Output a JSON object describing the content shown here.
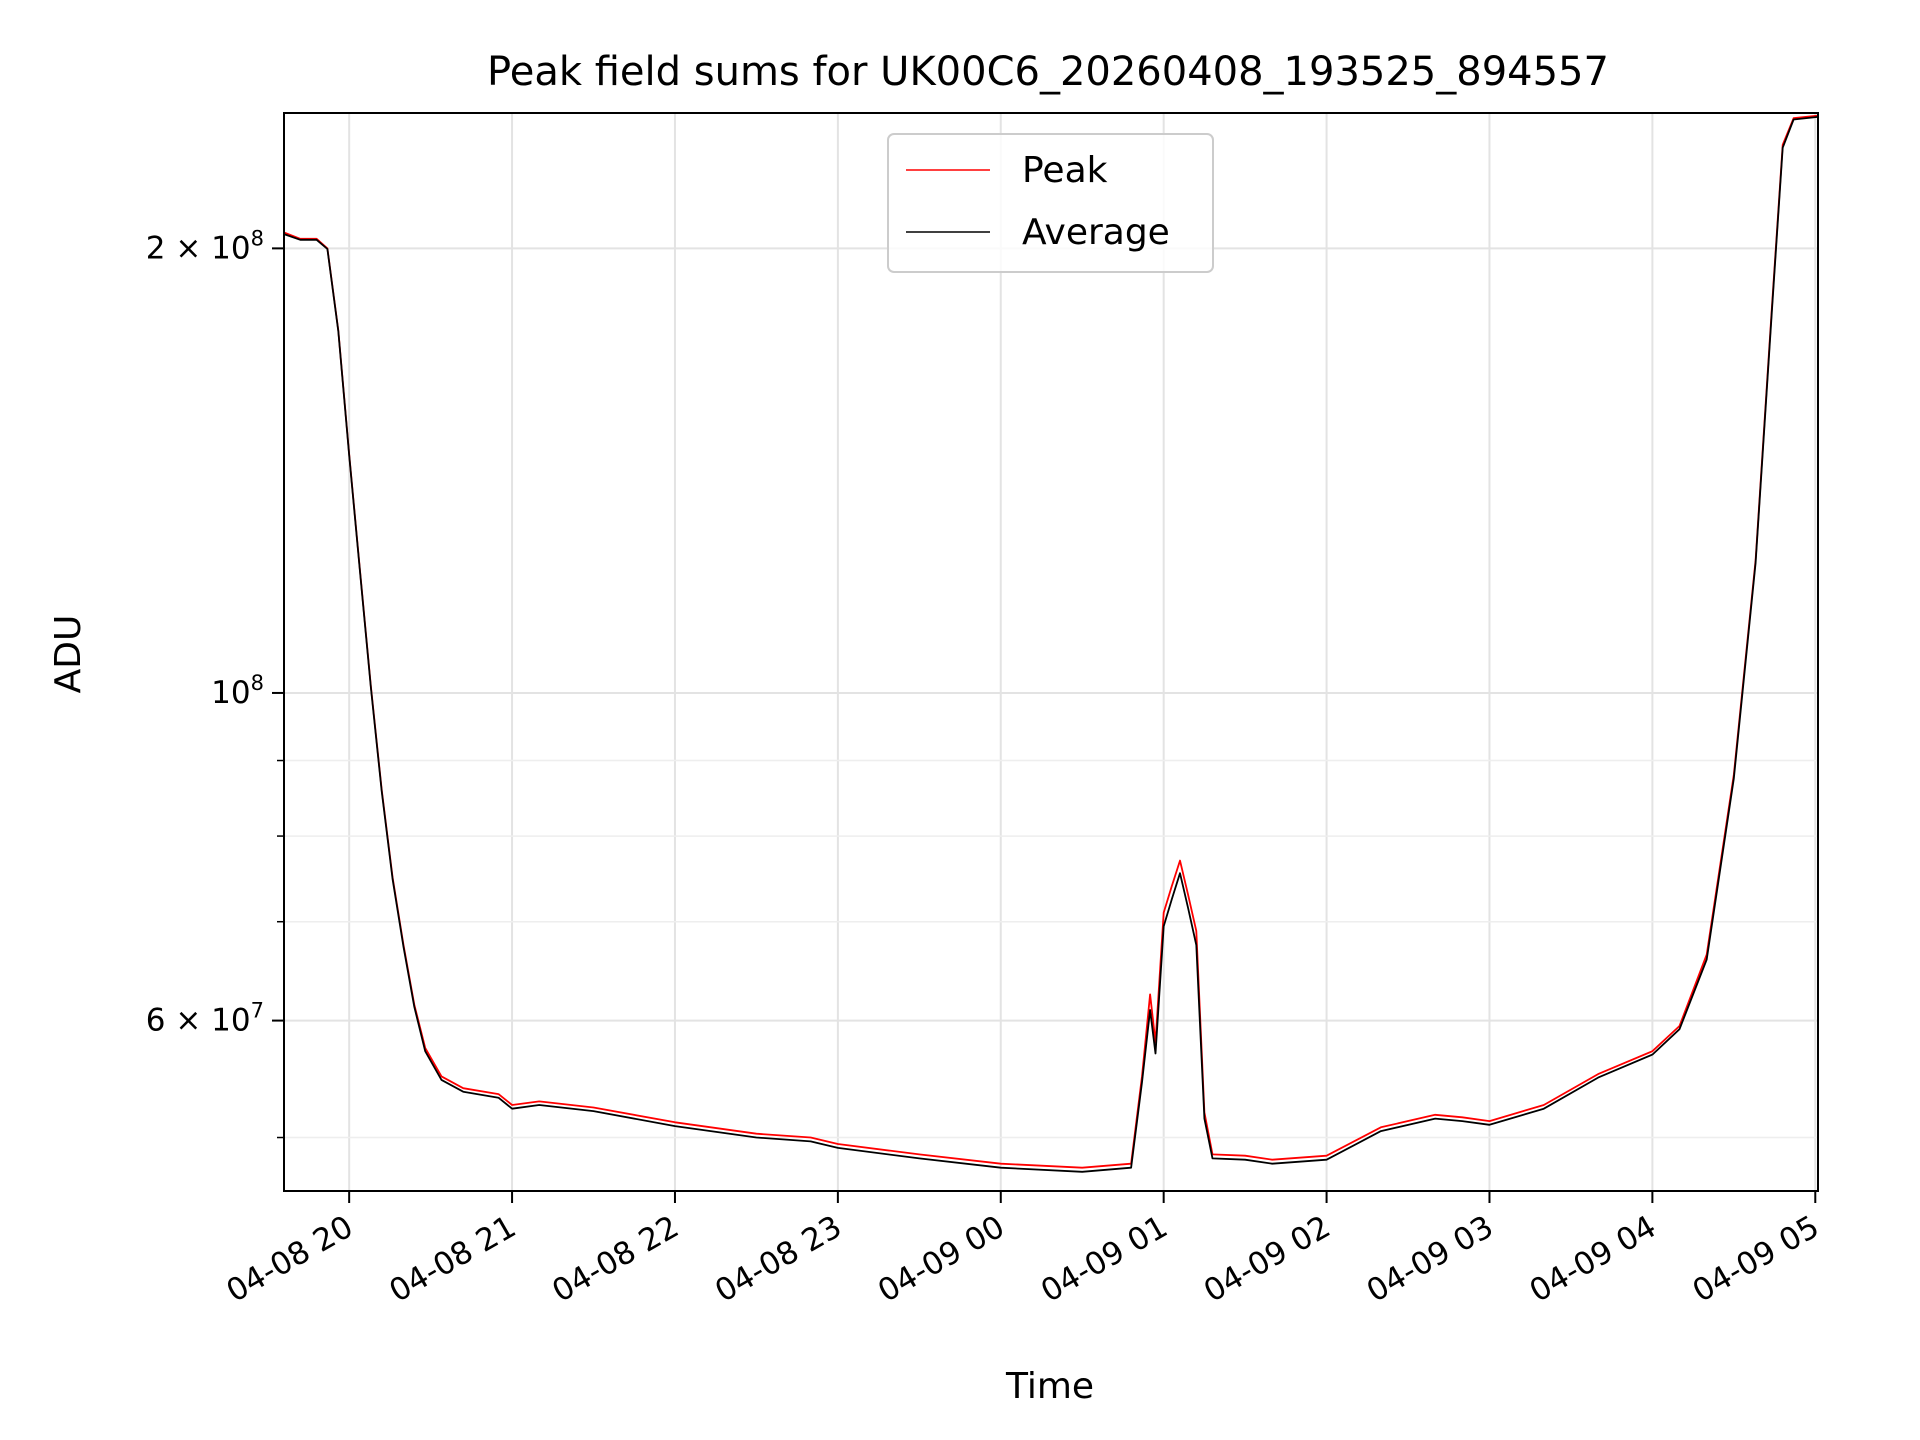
{
  "chart_data": {
    "type": "line",
    "title": "Peak field sums for UK00C6_20260408_193525_894557",
    "xlabel": "Time",
    "ylabel": "ADU",
    "yscale": "log",
    "grid": true,
    "legend_position": "upper center",
    "x_tick_labels": [
      "04-08 20",
      "04-08 21",
      "04-08 22",
      "04-08 23",
      "04-09 00",
      "04-09 01",
      "04-09 02",
      "04-09 03",
      "04-09 04",
      "04-09 05"
    ],
    "y_tick_labels": [
      {
        "value": 200000000,
        "base": "2 × 10",
        "exp": "8"
      },
      {
        "value": 100000000,
        "base": "10",
        "exp": "8"
      },
      {
        "value": 60000000,
        "base": "6 × 10",
        "exp": "7"
      }
    ],
    "xlim": [
      "2026-04-08 19:36",
      "2026-04-09 05:01"
    ],
    "ylim": [
      46000000,
      247000000
    ],
    "series": [
      {
        "name": "Peak",
        "color": "#ff0000",
        "points": [
          [
            "2026-04-08 19:36",
            205000000
          ],
          [
            "2026-04-08 19:42",
            203000000
          ],
          [
            "2026-04-08 19:48",
            203000000
          ],
          [
            "2026-04-08 19:52",
            200000000
          ],
          [
            "2026-04-08 19:56",
            176000000
          ],
          [
            "2026-04-08 20:00",
            145000000
          ],
          [
            "2026-04-08 20:04",
            121000000
          ],
          [
            "2026-04-08 20:08",
            101000000
          ],
          [
            "2026-04-08 20:12",
            86000000
          ],
          [
            "2026-04-08 20:16",
            75000000
          ],
          [
            "2026-04-08 20:20",
            67500000
          ],
          [
            "2026-04-08 20:24",
            61500000
          ],
          [
            "2026-04-08 20:28",
            57500000
          ],
          [
            "2026-04-08 20:34",
            55000000
          ],
          [
            "2026-04-08 20:42",
            54000000
          ],
          [
            "2026-04-08 20:55",
            53500000
          ],
          [
            "2026-04-08 21:00",
            52600000
          ],
          [
            "2026-04-08 21:10",
            52900000
          ],
          [
            "2026-04-08 21:30",
            52400000
          ],
          [
            "2026-04-08 22:00",
            51200000
          ],
          [
            "2026-04-08 22:30",
            50300000
          ],
          [
            "2026-04-08 22:50",
            50000000
          ],
          [
            "2026-04-08 23:00",
            49500000
          ],
          [
            "2026-04-08 23:30",
            48700000
          ],
          [
            "2026-04-09 00:00",
            48000000
          ],
          [
            "2026-04-09 00:30",
            47700000
          ],
          [
            "2026-04-09 00:48",
            48000000
          ],
          [
            "2026-04-09 00:52",
            55000000
          ],
          [
            "2026-04-09 00:55",
            62500000
          ],
          [
            "2026-04-09 00:57",
            58000000
          ],
          [
            "2026-04-09 01:00",
            71000000
          ],
          [
            "2026-04-09 01:03",
            74000000
          ],
          [
            "2026-04-09 01:06",
            77000000
          ],
          [
            "2026-04-09 01:09",
            73000000
          ],
          [
            "2026-04-09 01:12",
            69000000
          ],
          [
            "2026-04-09 01:15",
            52000000
          ],
          [
            "2026-04-09 01:18",
            48700000
          ],
          [
            "2026-04-09 01:30",
            48600000
          ],
          [
            "2026-04-09 01:40",
            48300000
          ],
          [
            "2026-04-09 02:00",
            48600000
          ],
          [
            "2026-04-09 02:20",
            50800000
          ],
          [
            "2026-04-09 02:40",
            51800000
          ],
          [
            "2026-04-09 02:50",
            51600000
          ],
          [
            "2026-04-09 03:00",
            51300000
          ],
          [
            "2026-04-09 03:20",
            52600000
          ],
          [
            "2026-04-09 03:40",
            55200000
          ],
          [
            "2026-04-09 04:00",
            57200000
          ],
          [
            "2026-04-09 04:10",
            59500000
          ],
          [
            "2026-04-09 04:20",
            66500000
          ],
          [
            "2026-04-09 04:30",
            88000000
          ],
          [
            "2026-04-09 04:38",
            123000000
          ],
          [
            "2026-04-09 04:44",
            182000000
          ],
          [
            "2026-04-09 04:48",
            235000000
          ],
          [
            "2026-04-09 04:52",
            245000000
          ],
          [
            "2026-04-09 05:01",
            246000000
          ]
        ]
      },
      {
        "name": "Average",
        "color": "#000000",
        "points": [
          [
            "2026-04-08 19:36",
            204500000
          ],
          [
            "2026-04-08 19:42",
            202700000
          ],
          [
            "2026-04-08 19:48",
            202700000
          ],
          [
            "2026-04-08 19:52",
            199800000
          ],
          [
            "2026-04-08 19:56",
            175800000
          ],
          [
            "2026-04-08 20:00",
            144800000
          ],
          [
            "2026-04-08 20:04",
            120800000
          ],
          [
            "2026-04-08 20:08",
            100800000
          ],
          [
            "2026-04-08 20:12",
            85800000
          ],
          [
            "2026-04-08 20:16",
            74800000
          ],
          [
            "2026-04-08 20:20",
            67300000
          ],
          [
            "2026-04-08 20:24",
            61300000
          ],
          [
            "2026-04-08 20:28",
            57200000
          ],
          [
            "2026-04-08 20:34",
            54700000
          ],
          [
            "2026-04-08 20:42",
            53700000
          ],
          [
            "2026-04-08 20:55",
            53200000
          ],
          [
            "2026-04-08 21:00",
            52300000
          ],
          [
            "2026-04-08 21:10",
            52600000
          ],
          [
            "2026-04-08 21:30",
            52100000
          ],
          [
            "2026-04-08 22:00",
            50900000
          ],
          [
            "2026-04-08 22:30",
            50000000
          ],
          [
            "2026-04-08 22:50",
            49700000
          ],
          [
            "2026-04-08 23:00",
            49200000
          ],
          [
            "2026-04-08 23:30",
            48400000
          ],
          [
            "2026-04-09 00:00",
            47700000
          ],
          [
            "2026-04-09 00:30",
            47400000
          ],
          [
            "2026-04-09 00:48",
            47700000
          ],
          [
            "2026-04-09 00:52",
            54500000
          ],
          [
            "2026-04-09 00:55",
            61000000
          ],
          [
            "2026-04-09 00:57",
            57000000
          ],
          [
            "2026-04-09 01:00",
            69500000
          ],
          [
            "2026-04-09 01:03",
            72500000
          ],
          [
            "2026-04-09 01:06",
            75500000
          ],
          [
            "2026-04-09 01:09",
            71500000
          ],
          [
            "2026-04-09 01:12",
            67500000
          ],
          [
            "2026-04-09 01:15",
            51500000
          ],
          [
            "2026-04-09 01:18",
            48400000
          ],
          [
            "2026-04-09 01:30",
            48300000
          ],
          [
            "2026-04-09 01:40",
            48000000
          ],
          [
            "2026-04-09 02:00",
            48300000
          ],
          [
            "2026-04-09 02:20",
            50500000
          ],
          [
            "2026-04-09 02:40",
            51500000
          ],
          [
            "2026-04-09 02:50",
            51300000
          ],
          [
            "2026-04-09 03:00",
            51000000
          ],
          [
            "2026-04-09 03:20",
            52300000
          ],
          [
            "2026-04-09 03:40",
            54900000
          ],
          [
            "2026-04-09 04:00",
            56900000
          ],
          [
            "2026-04-09 04:10",
            59200000
          ],
          [
            "2026-04-09 04:20",
            66000000
          ],
          [
            "2026-04-09 04:30",
            87500000
          ],
          [
            "2026-04-09 04:38",
            122500000
          ],
          [
            "2026-04-09 04:44",
            181000000
          ],
          [
            "2026-04-09 04:48",
            234000000
          ],
          [
            "2026-04-09 04:52",
            244500000
          ],
          [
            "2026-04-09 05:01",
            245500000
          ]
        ]
      }
    ]
  }
}
